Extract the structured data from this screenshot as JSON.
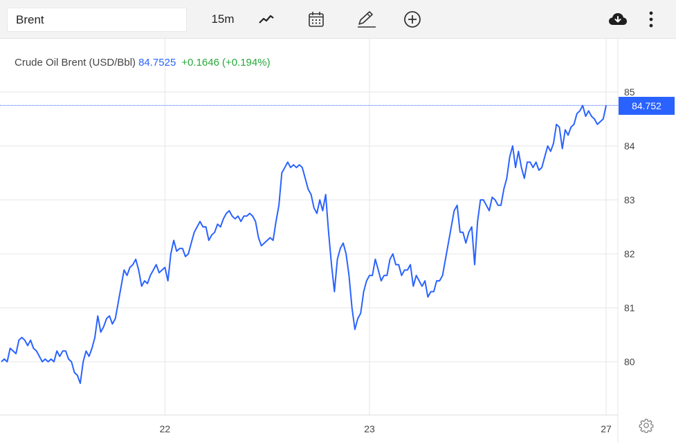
{
  "toolbar": {
    "search_value": "Brent",
    "interval_label": "15m",
    "icons": [
      "chart-type-icon",
      "calendar-icon",
      "pencil-icon",
      "add-icon",
      "cloud-download-icon",
      "more-vertical-icon"
    ]
  },
  "legend": {
    "name": "Crude Oil Brent (USD/Bbl)",
    "price": "84.7525",
    "change": "+0.1646",
    "change_pct": "(+0.194%)"
  },
  "price_tag": "84.752",
  "colors": {
    "line": "#2962ff",
    "positive": "#26a83a",
    "grid": "#e6e6e6",
    "toolbar_bg": "#f3f3f3"
  },
  "chart_data": {
    "type": "line",
    "title": "Crude Oil Brent (USD/Bbl)",
    "xlabel": "",
    "ylabel": "",
    "x_tick_labels": [
      "22",
      "23",
      "27"
    ],
    "x_tick_index": [
      56,
      126,
      207
    ],
    "y_ticks": [
      80,
      81,
      82,
      83,
      84,
      85
    ],
    "ylim": [
      79.0,
      85.25
    ],
    "grid": true,
    "last_price": 84.752,
    "series": [
      {
        "values": [
          80.0,
          80.05,
          80.0,
          80.25,
          80.2,
          80.15,
          80.4,
          80.45,
          80.4,
          80.3,
          80.4,
          80.25,
          80.2,
          80.1,
          80.0,
          80.05,
          80.0,
          80.05,
          80.0,
          80.2,
          80.1,
          80.2,
          80.2,
          80.05,
          80.0,
          79.8,
          79.75,
          79.6,
          80.0,
          80.2,
          80.1,
          80.25,
          80.45,
          80.85,
          80.55,
          80.65,
          80.8,
          80.85,
          80.7,
          80.8,
          81.1,
          81.4,
          81.7,
          81.6,
          81.75,
          81.8,
          81.9,
          81.7,
          81.4,
          81.5,
          81.45,
          81.6,
          81.7,
          81.8,
          81.65,
          81.7,
          81.75,
          81.5,
          82.0,
          82.25,
          82.05,
          82.1,
          82.1,
          81.95,
          82.0,
          82.2,
          82.4,
          82.5,
          82.6,
          82.5,
          82.5,
          82.25,
          82.35,
          82.4,
          82.55,
          82.5,
          82.65,
          82.75,
          82.8,
          82.7,
          82.65,
          82.7,
          82.6,
          82.7,
          82.7,
          82.75,
          82.7,
          82.6,
          82.3,
          82.15,
          82.2,
          82.25,
          82.3,
          82.25,
          82.6,
          82.9,
          83.5,
          83.6,
          83.7,
          83.6,
          83.65,
          83.6,
          83.65,
          83.6,
          83.4,
          83.2,
          83.1,
          82.85,
          82.75,
          83.0,
          82.8,
          83.1,
          82.4,
          81.8,
          81.3,
          81.9,
          82.1,
          82.2,
          82.0,
          81.6,
          81.0,
          80.6,
          80.8,
          80.9,
          81.3,
          81.5,
          81.6,
          81.6,
          81.9,
          81.7,
          81.5,
          81.6,
          81.6,
          81.9,
          82.0,
          81.8,
          81.8,
          81.6,
          81.7,
          81.7,
          81.8,
          81.4,
          81.6,
          81.5,
          81.4,
          81.5,
          81.2,
          81.3,
          81.3,
          81.5,
          81.5,
          81.6,
          81.9,
          82.2,
          82.5,
          82.8,
          82.9,
          82.4,
          82.4,
          82.2,
          82.4,
          82.5,
          81.8,
          82.6,
          83.0,
          83.0,
          82.9,
          82.8,
          83.05,
          83.0,
          82.9,
          82.9,
          83.2,
          83.4,
          83.8,
          84.0,
          83.6,
          83.9,
          83.6,
          83.4,
          83.7,
          83.7,
          83.6,
          83.7,
          83.55,
          83.6,
          83.8,
          84.0,
          83.9,
          84.05,
          84.4,
          84.35,
          83.95,
          84.3,
          84.2,
          84.35,
          84.4,
          84.6,
          84.65,
          84.75,
          84.55,
          84.65,
          84.55,
          84.5,
          84.4,
          84.45,
          84.5,
          84.75
        ]
      }
    ]
  }
}
